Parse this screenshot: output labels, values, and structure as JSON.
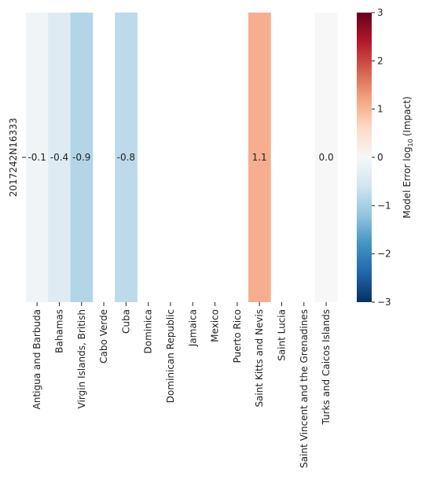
{
  "chart_data": {
    "type": "heatmap",
    "title": "",
    "xlabel": "",
    "ylabel": "",
    "rows": [
      "2017242N16333"
    ],
    "columns": [
      "Antigua and Barbuda",
      "Bahamas",
      "Virgin Islands, British",
      "Cabo Verde",
      "Cuba",
      "Dominica",
      "Dominican Republic",
      "Jamaica",
      "Mexico",
      "Puerto Rico",
      "Saint Kitts and Nevis",
      "Saint Lucia",
      "Saint Vincent and the Grenadines",
      "Turks and Caicos Islands"
    ],
    "values": [
      [
        -0.1,
        -0.4,
        -0.9,
        null,
        -0.8,
        null,
        null,
        null,
        null,
        null,
        1.1,
        null,
        null,
        0.0
      ]
    ],
    "cell_labels": [
      [
        "-0.1",
        "-0.4",
        "-0.9",
        "",
        "-0.8",
        "",
        "",
        "",
        "",
        "",
        "1.1",
        "",
        "",
        "0.0"
      ]
    ],
    "colorbar": {
      "label_main": "Model Error log",
      "label_sub": "10",
      "label_tail": "(Impact)",
      "range": [
        -3,
        3
      ],
      "ticks": [
        "3",
        "2",
        "1",
        "0",
        "−1",
        "−2",
        "−3"
      ],
      "colormap": "RdBu_r"
    }
  }
}
